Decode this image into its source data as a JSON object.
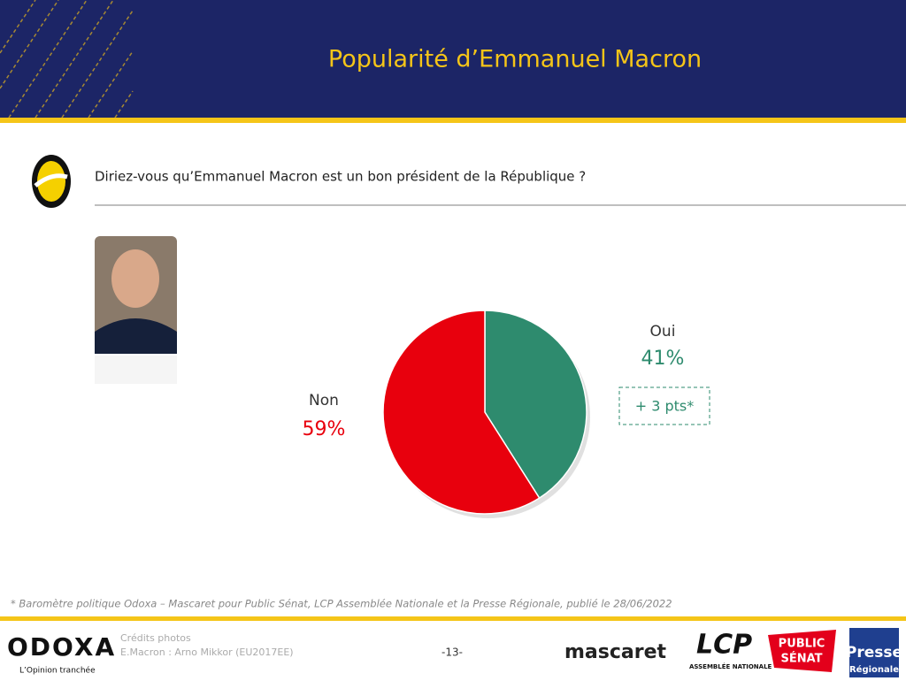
{
  "header": {
    "title": "Popularité d’Emmanuel Macron"
  },
  "question": "Diriez-vous qu’Emmanuel Macron est un bon président de la République ?",
  "chart_data": {
    "type": "pie",
    "categories": [
      "Oui",
      "Non"
    ],
    "values": [
      41,
      59
    ],
    "value_labels": [
      "41%",
      "59%"
    ],
    "colors": [
      "#2e8b6e",
      "#e8000d"
    ],
    "annotation": "+ 3 pts*"
  },
  "footnote": "* Baromètre politique Odoxa – Mascaret pour Public Sénat, LCP Assemblée Nationale et la Presse Régionale, publié le 28/06/2022",
  "footer": {
    "brand": "ODOXA",
    "tagline": "L’Opinion tranchée",
    "credits_title": "Crédits photos",
    "credits": "E.Macron : Arno Mikkor (EU2017EE)",
    "page": "-13-",
    "logos": [
      "mascaret",
      "LCP",
      "ASSEMBLÉE NATIONALE",
      "PUBLIC",
      "SÉNAT",
      "Presse",
      "Régionale"
    ]
  }
}
